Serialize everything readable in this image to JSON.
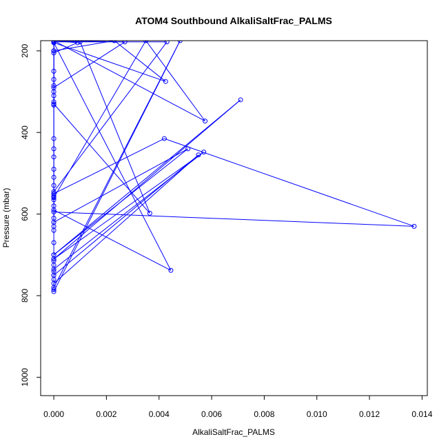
{
  "chart_data": {
    "type": "line",
    "title": "ATOM4 Southbound AlkaliSaltFrac_PALMS",
    "xlabel": "AlkaliSaltFrac_PALMS",
    "ylabel": "Pressure (mbar)",
    "xlim": [
      -0.0005,
      0.0142
    ],
    "ylim": [
      1045,
      175
    ],
    "y_inverted": true,
    "grid": false,
    "legend": "none",
    "x_ticks": [
      0.0,
      0.002,
      0.004,
      0.006,
      0.008,
      0.01,
      0.012,
      0.014
    ],
    "x_tick_labels": [
      "0.000",
      "0.002",
      "0.004",
      "0.006",
      "0.008",
      "0.010",
      "0.012",
      "0.014"
    ],
    "y_ticks": [
      200,
      400,
      600,
      800,
      1000
    ],
    "y_tick_labels": [
      "200",
      "400",
      "600",
      "800",
      "1000"
    ],
    "series": [
      {
        "color": "#0000ff",
        "marker": "open-circle",
        "points": [
          [
            0.0,
            205
          ],
          [
            0.0009,
            180
          ],
          [
            0.0,
            175
          ],
          [
            0.0,
            290
          ],
          [
            0.0027,
            178
          ],
          [
            0.0,
            175
          ],
          [
            0.0,
            270
          ],
          [
            0.0,
            285
          ],
          [
            0.0,
            300
          ],
          [
            0.0,
            310
          ],
          [
            0.0,
            325
          ],
          [
            0.0,
            333
          ],
          [
            0.0,
            250
          ],
          [
            0.0,
            200
          ],
          [
            0.0023,
            175
          ],
          [
            0.00425,
            275
          ],
          [
            0.0,
            180
          ],
          [
            0.0,
            175
          ],
          [
            0.0,
            415
          ],
          [
            0.0,
            440
          ],
          [
            0.0,
            460
          ],
          [
            0.0,
            490
          ],
          [
            0.0,
            510
          ],
          [
            0.0,
            530
          ],
          [
            0.0,
            545
          ],
          [
            0.0043,
            178
          ],
          [
            0.0,
            178
          ],
          [
            0.0,
            200
          ],
          [
            0.0,
            330
          ],
          [
            0.00365,
            598
          ],
          [
            0.001,
            178
          ],
          [
            0.0,
            175
          ],
          [
            0.0,
            550
          ],
          [
            0.0,
            558
          ],
          [
            0.0,
            565
          ],
          [
            0.0,
            580
          ],
          [
            0.0,
            590
          ],
          [
            0.00445,
            738
          ],
          [
            0.0,
            180
          ],
          [
            0.0,
            175
          ],
          [
            0.0,
            610
          ],
          [
            0.0,
            620
          ],
          [
            0.0,
            630
          ],
          [
            0.0,
            640
          ],
          [
            0.0,
            670
          ],
          [
            0.0,
            700
          ],
          [
            0.0071,
            320
          ],
          [
            0.0,
            710
          ],
          [
            0.0,
            715
          ],
          [
            0.0,
            725
          ],
          [
            0.0,
            740
          ],
          [
            0.0,
            750
          ],
          [
            0.0,
            760
          ],
          [
            0.0,
            780
          ],
          [
            0.0048,
            175
          ],
          [
            0.0,
            790
          ],
          [
            0.0,
            785
          ],
          [
            0.0,
            770
          ],
          [
            0.0055,
            455
          ],
          [
            0.0,
            750
          ],
          [
            0.0,
            735
          ],
          [
            0.0057,
            448
          ],
          [
            0.0,
            710
          ],
          [
            0.0,
            700
          ],
          [
            0.0051,
            440
          ],
          [
            0.0,
            620
          ],
          [
            0.0,
            555
          ],
          [
            0.0,
            550
          ],
          [
            0.0042,
            415
          ],
          [
            0.0137,
            630
          ],
          [
            0.0,
            595
          ],
          [
            0.0,
            560
          ],
          [
            0.0035,
            175
          ],
          [
            0.00575,
            372
          ],
          [
            0.0,
            175
          ],
          [
            0.0,
            178
          ],
          [
            0.0,
            200
          ]
        ]
      }
    ]
  }
}
